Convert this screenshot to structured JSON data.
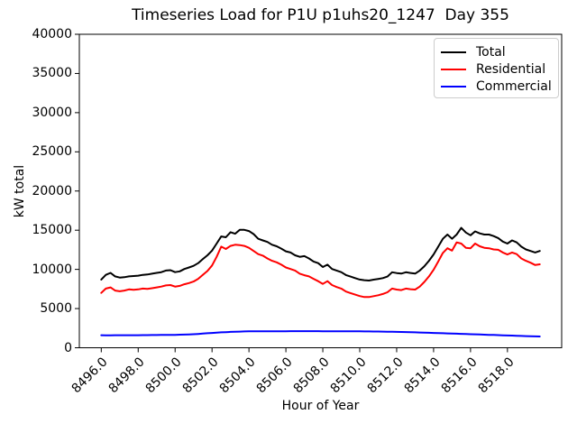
{
  "chart_data": {
    "type": "line",
    "title": "Timeseries Load for P1U p1uhs20_1247  Day 355",
    "xlabel": "Hour of Year",
    "ylabel": "kW total",
    "grid": false,
    "legend_position": "upper right",
    "xlim": [
      8494.8125,
      8520.9375
    ],
    "ylim": [
      0,
      40000
    ],
    "x_ticks": [
      8496,
      8498,
      8500,
      8502,
      8504,
      8506,
      8508,
      8510,
      8512,
      8514,
      8516,
      8518
    ],
    "x_tick_labels": [
      "8496.0",
      "8498.0",
      "8500.0",
      "8502.0",
      "8504.0",
      "8506.0",
      "8508.0",
      "8510.0",
      "8512.0",
      "8514.0",
      "8516.0",
      "8518.0"
    ],
    "y_ticks": [
      0,
      5000,
      10000,
      15000,
      20000,
      25000,
      30000,
      35000,
      40000
    ],
    "y_tick_labels": [
      "0",
      "5000",
      "10000",
      "15000",
      "20000",
      "25000",
      "30000",
      "35000",
      "40000"
    ],
    "x_start": 8496.0,
    "x_step": 0.25,
    "series": [
      {
        "name": "Total",
        "color": "#000000",
        "values": [
          8700,
          9300,
          9550,
          9100,
          8950,
          9000,
          9100,
          9150,
          9200,
          9300,
          9350,
          9450,
          9550,
          9650,
          9850,
          9900,
          9650,
          9750,
          10050,
          10250,
          10450,
          10800,
          11300,
          11800,
          12400,
          13300,
          14200,
          14100,
          14750,
          14550,
          15050,
          15050,
          14900,
          14500,
          13900,
          13700,
          13500,
          13150,
          12950,
          12650,
          12300,
          12150,
          11800,
          11600,
          11700,
          11400,
          11000,
          10800,
          10300,
          10600,
          10050,
          9850,
          9650,
          9280,
          9080,
          8890,
          8700,
          8620,
          8570,
          8690,
          8780,
          8890,
          9080,
          9640,
          9530,
          9460,
          9640,
          9540,
          9460,
          9850,
          10400,
          11100,
          11900,
          12900,
          13900,
          14450,
          13900,
          14450,
          15300,
          14700,
          14350,
          14850,
          14600,
          14450,
          14450,
          14250,
          14000,
          13550,
          13300,
          13700,
          13450,
          12900,
          12550,
          12350,
          12150,
          12350
        ]
      },
      {
        "name": "Residential",
        "color": "#ff0000",
        "values": [
          7000,
          7550,
          7700,
          7300,
          7200,
          7300,
          7450,
          7400,
          7450,
          7550,
          7500,
          7600,
          7700,
          7800,
          7950,
          8000,
          7800,
          7900,
          8100,
          8250,
          8450,
          8800,
          9300,
          9800,
          10500,
          11600,
          12900,
          12600,
          13000,
          13150,
          13100,
          13000,
          12750,
          12350,
          11950,
          11750,
          11400,
          11100,
          10900,
          10600,
          10250,
          10050,
          9850,
          9450,
          9250,
          9100,
          8800,
          8500,
          8150,
          8500,
          8000,
          7750,
          7550,
          7170,
          6970,
          6780,
          6600,
          6470,
          6470,
          6580,
          6700,
          6860,
          7080,
          7550,
          7430,
          7350,
          7550,
          7470,
          7430,
          7800,
          8400,
          9100,
          9950,
          11000,
          12100,
          12700,
          12400,
          13450,
          13300,
          12750,
          12700,
          13300,
          12950,
          12750,
          12700,
          12550,
          12500,
          12150,
          11900,
          12150,
          11950,
          11400,
          11100,
          10850,
          10550,
          10650
        ]
      },
      {
        "name": "Commercial",
        "color": "#0000ff",
        "values": [
          1600,
          1590,
          1590,
          1595,
          1595,
          1600,
          1600,
          1605,
          1605,
          1610,
          1615,
          1620,
          1625,
          1630,
          1640,
          1645,
          1650,
          1665,
          1685,
          1705,
          1730,
          1765,
          1805,
          1850,
          1890,
          1930,
          1965,
          1995,
          2025,
          2045,
          2065,
          2080,
          2090,
          2095,
          2100,
          2100,
          2105,
          2105,
          2110,
          2110,
          2110,
          2115,
          2115,
          2115,
          2115,
          2115,
          2115,
          2115,
          2110,
          2110,
          2110,
          2105,
          2105,
          2100,
          2100,
          2095,
          2090,
          2085,
          2080,
          2075,
          2070,
          2060,
          2050,
          2040,
          2030,
          2015,
          2000,
          1985,
          1970,
          1950,
          1930,
          1910,
          1890,
          1870,
          1850,
          1830,
          1810,
          1790,
          1770,
          1750,
          1730,
          1710,
          1690,
          1670,
          1650,
          1630,
          1610,
          1590,
          1570,
          1550,
          1530,
          1510,
          1490,
          1470,
          1455,
          1440
        ]
      }
    ]
  }
}
